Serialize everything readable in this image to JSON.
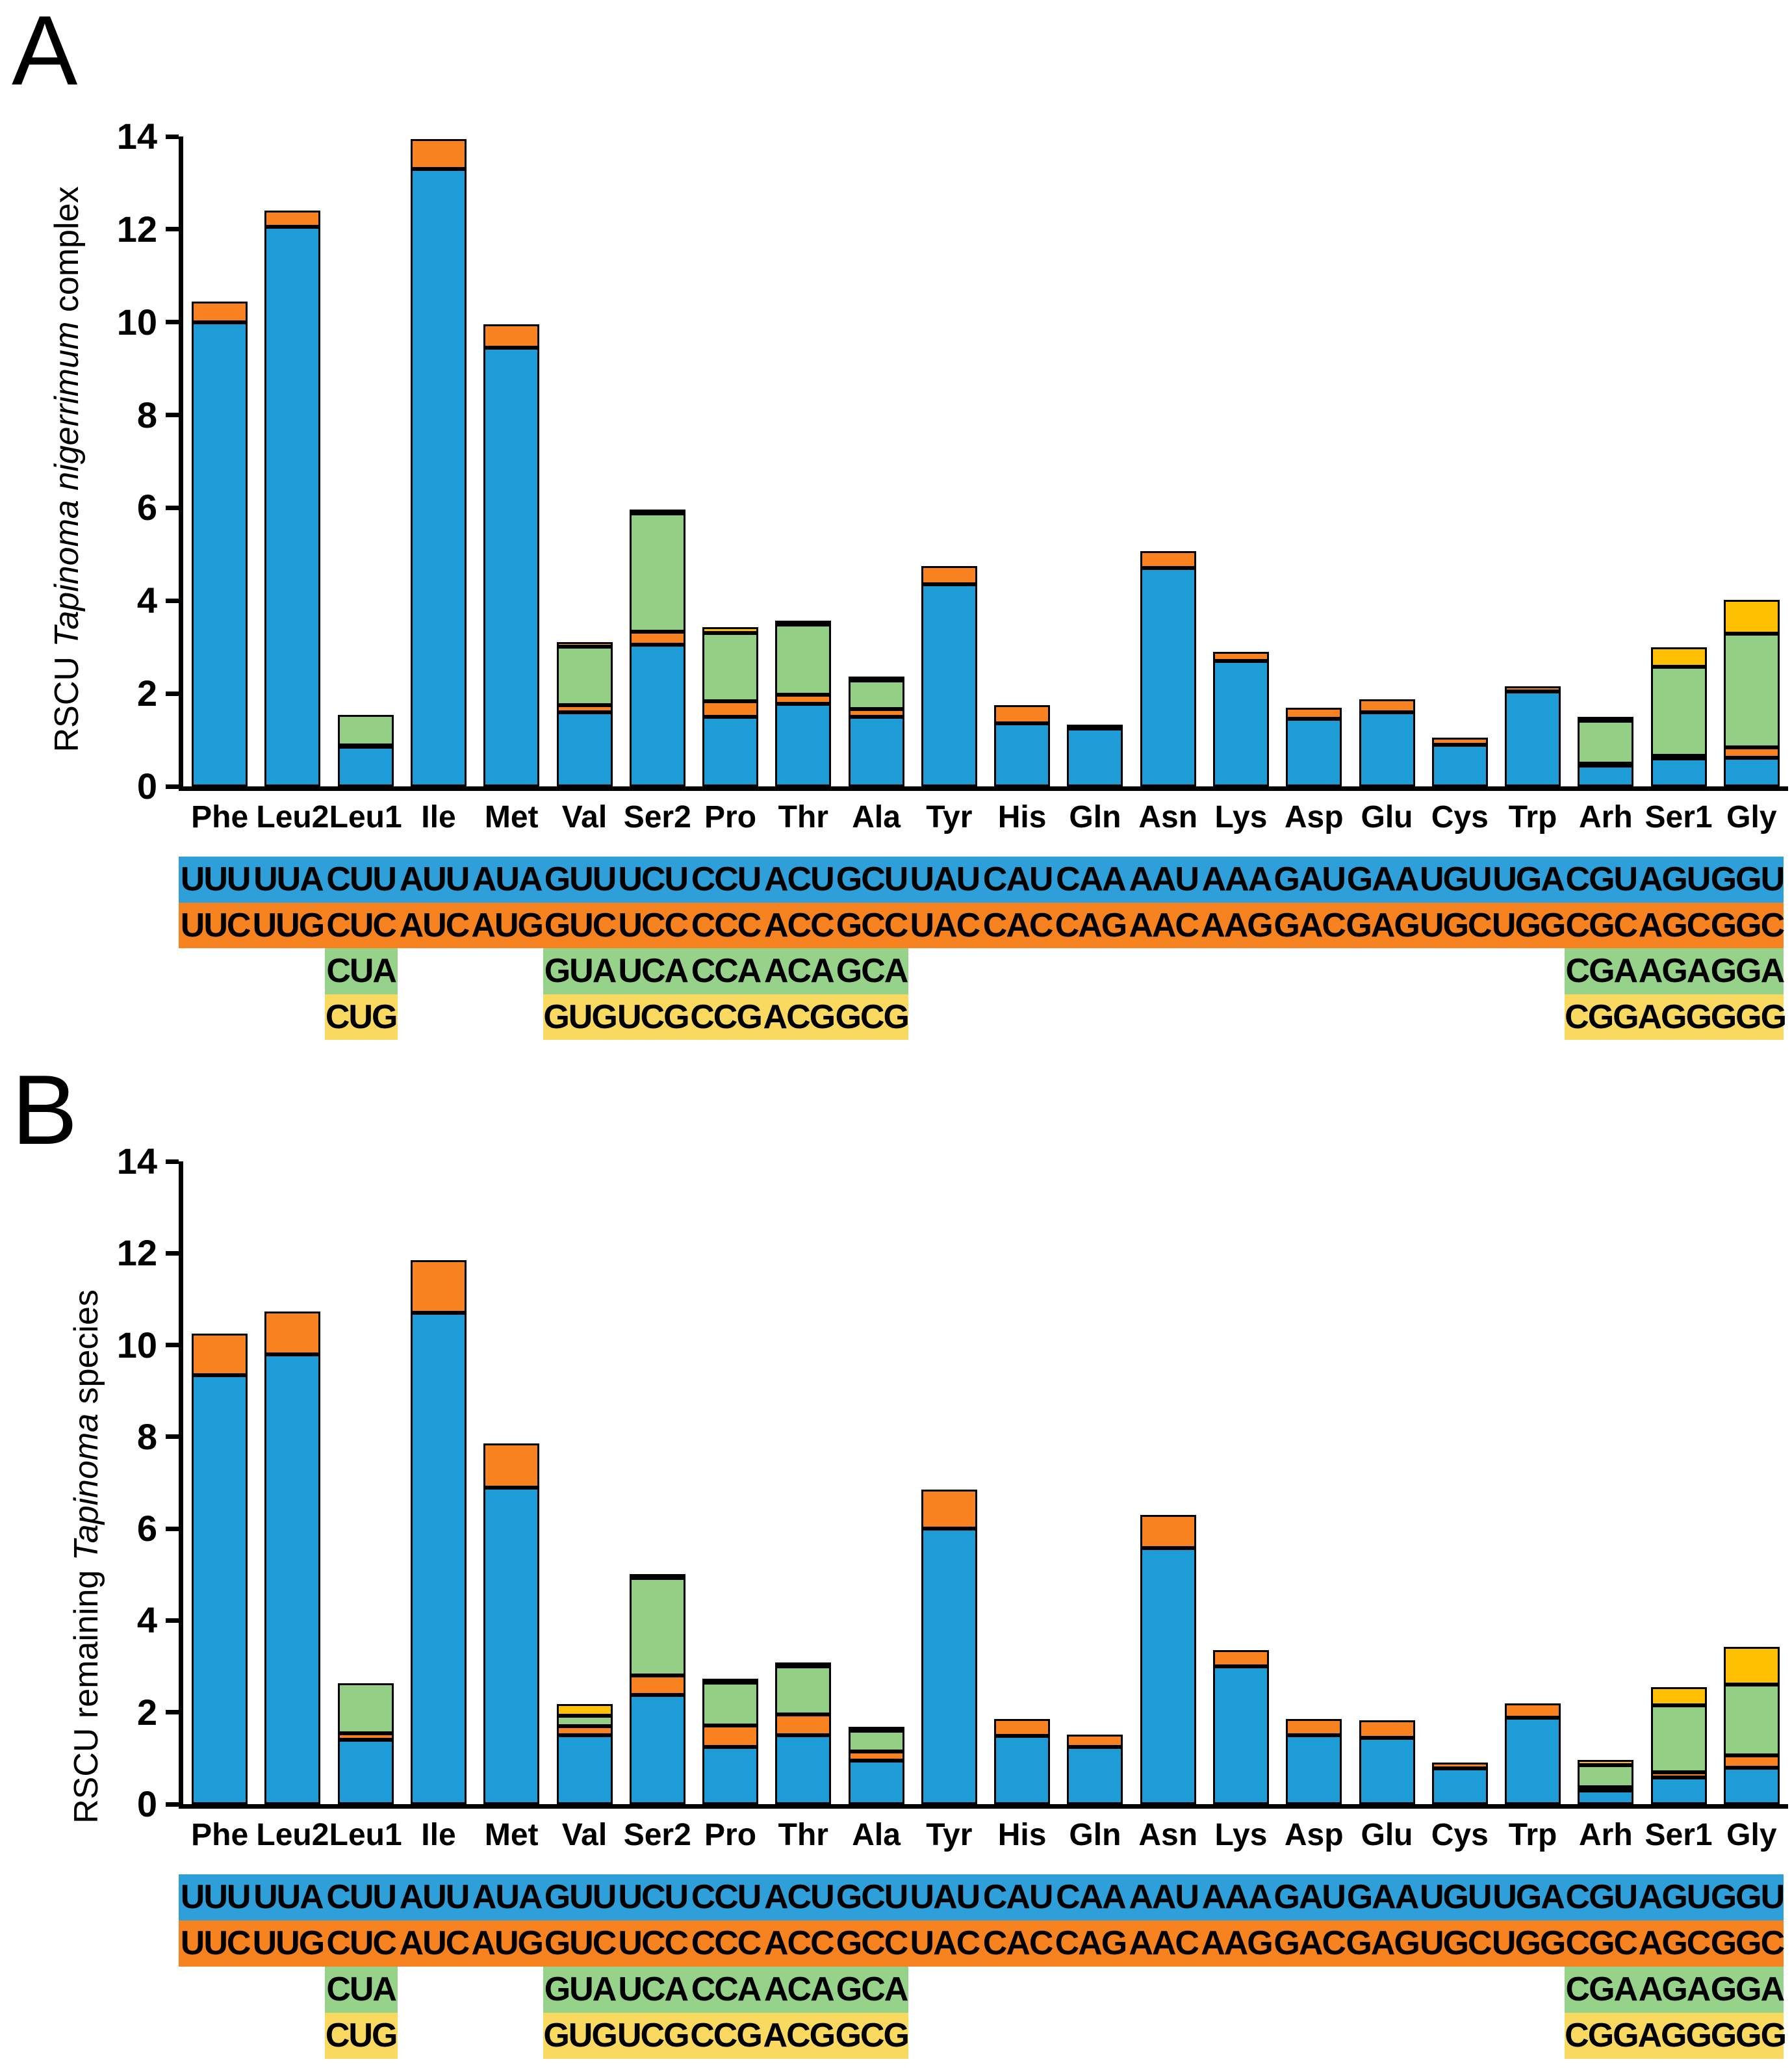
{
  "figure": {
    "panels": [
      {
        "letter": "A",
        "y_axis_label": {
          "prefix": "RSCU ",
          "italic": "Tapinoma nigerrimum",
          "suffix": " complex"
        }
      },
      {
        "letter": "B",
        "y_axis_label": {
          "prefix": "RSCU remaining ",
          "italic": "Tapinoma",
          "suffix": " species"
        }
      }
    ]
  },
  "colors": {
    "bar_blue": "#1E9CD8",
    "bar_orange": "#F8821F",
    "bar_green": "#92CE83",
    "bar_yellow": "#FEC001",
    "table_blue": "#2E9FD9",
    "table_orange": "#F6831F",
    "table_green": "#97D28B",
    "table_yellow": "#F9D95F",
    "axis": "#000000"
  },
  "chart_data": [
    {
      "type": "bar",
      "stacked": true,
      "title": "RSCU Tapinoma nigerrimum complex",
      "ylabel": "RSCU Tapinoma nigerrimum complex",
      "xlabel": "",
      "ylim": [
        0,
        14
      ],
      "yticks": [
        0,
        2,
        4,
        6,
        8,
        10,
        12,
        14
      ],
      "grid": false,
      "legend": "none",
      "categories": [
        "Phe",
        "Leu2",
        "Leu1",
        "Ile",
        "Met",
        "Val",
        "Ser2",
        "Pro",
        "Thr",
        "Ala",
        "Tyr",
        "His",
        "Gln",
        "Asn",
        "Lys",
        "Asp",
        "Glu",
        "Cys",
        "Trp",
        "Arh",
        "Ser1",
        "Gly"
      ],
      "series": [
        {
          "name": "codon-row-1",
          "color": "#1E9CD8",
          "values": [
            10.0,
            12.05,
            0.85,
            13.3,
            9.45,
            1.6,
            3.05,
            1.5,
            1.78,
            1.5,
            4.35,
            1.36,
            1.25,
            4.7,
            2.7,
            1.45,
            1.6,
            0.9,
            2.05,
            0.45,
            0.6,
            0.62
          ]
        },
        {
          "name": "codon-row-2",
          "color": "#F8821F",
          "values": [
            0.45,
            0.35,
            0.03,
            0.65,
            0.5,
            0.15,
            0.28,
            0.34,
            0.19,
            0.16,
            0.4,
            0.39,
            0.07,
            0.37,
            0.2,
            0.25,
            0.27,
            0.15,
            0.1,
            0.04,
            0.06,
            0.22
          ]
        },
        {
          "name": "codon-row-3",
          "color": "#92CE83",
          "values": [
            0,
            0,
            0.66,
            0,
            0,
            1.26,
            2.55,
            1.47,
            1.52,
            0.62,
            0,
            0,
            0,
            0,
            0,
            0,
            0,
            0,
            0,
            0.93,
            1.92,
            2.45
          ]
        },
        {
          "name": "codon-row-4",
          "color": "#FEC001",
          "values": [
            0,
            0,
            0,
            0,
            0,
            0.1,
            0.03,
            0.12,
            0.04,
            0.06,
            0,
            0,
            0,
            0,
            0,
            0,
            0,
            0,
            0,
            0.03,
            0.42,
            0.73
          ]
        }
      ]
    },
    {
      "type": "bar",
      "stacked": true,
      "title": "RSCU remaining Tapinoma species",
      "ylabel": "RSCU remaining Tapinoma species",
      "xlabel": "",
      "ylim": [
        0,
        14
      ],
      "yticks": [
        0,
        2,
        4,
        6,
        8,
        10,
        12,
        14
      ],
      "grid": false,
      "legend": "none",
      "categories": [
        "Phe",
        "Leu2",
        "Leu1",
        "Ile",
        "Met",
        "Val",
        "Ser2",
        "Pro",
        "Thr",
        "Ala",
        "Tyr",
        "His",
        "Gln",
        "Asn",
        "Lys",
        "Asp",
        "Glu",
        "Cys",
        "Trp",
        "Arh",
        "Ser1",
        "Gly"
      ],
      "series": [
        {
          "name": "codon-row-1",
          "color": "#1E9CD8",
          "values": [
            9.35,
            9.8,
            1.4,
            10.7,
            6.9,
            1.5,
            2.38,
            1.25,
            1.5,
            0.95,
            6.0,
            1.48,
            1.25,
            5.58,
            3.0,
            1.5,
            1.45,
            0.78,
            1.88,
            0.3,
            0.58,
            0.8
          ]
        },
        {
          "name": "codon-row-2",
          "color": "#F8821F",
          "values": [
            0.9,
            0.93,
            0.15,
            1.15,
            0.95,
            0.2,
            0.42,
            0.46,
            0.45,
            0.2,
            0.85,
            0.38,
            0.27,
            0.72,
            0.36,
            0.35,
            0.37,
            0.13,
            0.32,
            0.07,
            0.12,
            0.26
          ]
        },
        {
          "name": "codon-row-3",
          "color": "#92CE83",
          "values": [
            0,
            0,
            1.08,
            0,
            0,
            0.23,
            2.12,
            0.94,
            1.05,
            0.45,
            0,
            0,
            0,
            0,
            0,
            0,
            0,
            0,
            0,
            0.48,
            1.45,
            1.54
          ]
        },
        {
          "name": "codon-row-4",
          "color": "#FEC001",
          "values": [
            0,
            0,
            0,
            0,
            0,
            0.25,
            0.08,
            0.05,
            0.08,
            0.07,
            0,
            0,
            0,
            0,
            0,
            0,
            0,
            0,
            0,
            0.12,
            0.4,
            0.83
          ]
        }
      ]
    }
  ],
  "codon_table": {
    "rows": [
      {
        "bg": "#2E9FD9",
        "cells": [
          "UUU",
          "UUA",
          "CUU",
          "AUU",
          "AUA",
          "GUU",
          "UCU",
          "CCU",
          "ACU",
          "GCU",
          "UAU",
          "CAU",
          "CAA",
          "AAU",
          "AAA",
          "GAU",
          "GAA",
          "UGU",
          "UGA",
          "CGU",
          "AGU",
          "GGU"
        ]
      },
      {
        "bg": "#F6831F",
        "cells": [
          "UUC",
          "UUG",
          "CUC",
          "AUC",
          "AUG",
          "GUC",
          "UCC",
          "CCC",
          "ACC",
          "GCC",
          "UAC",
          "CAC",
          "CAG",
          "AAC",
          "AAG",
          "GAC",
          "GAG",
          "UGC",
          "UGG",
          "CGC",
          "AGC",
          "GGC"
        ]
      },
      {
        "bg": "#97D28B",
        "cells": [
          null,
          null,
          "CUA",
          null,
          null,
          "GUA",
          "UCA",
          "CCA",
          "ACA",
          "GCA",
          null,
          null,
          null,
          null,
          null,
          null,
          null,
          null,
          null,
          "CGA",
          "AGA",
          "GGA"
        ]
      },
      {
        "bg": "#F9D95F",
        "cells": [
          null,
          null,
          "CUG",
          null,
          null,
          "GUG",
          "UCG",
          "CCG",
          "ACG",
          "GCG",
          null,
          null,
          null,
          null,
          null,
          null,
          null,
          null,
          null,
          "CGG",
          "AGG",
          "GGG"
        ]
      }
    ]
  }
}
